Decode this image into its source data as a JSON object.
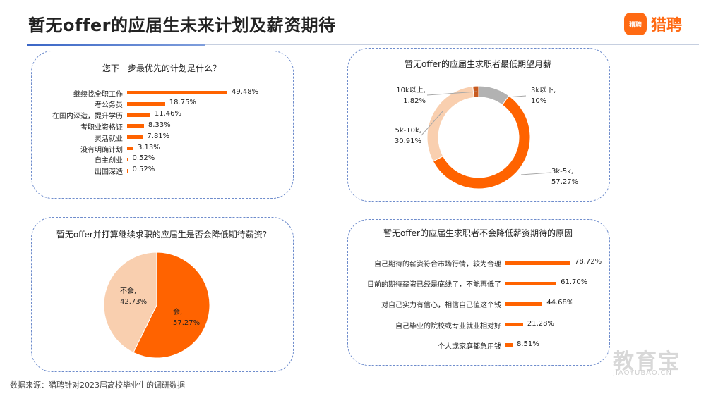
{
  "header": {
    "title": "暂无offer的应届生未来计划及薪资期待"
  },
  "brand": {
    "logo_icon_text": "猎聘",
    "name": "猎聘",
    "color": "#ff6a13"
  },
  "footer": {
    "source": "数据来源：猎聘针对2023届高校毕业生的调研数据"
  },
  "watermark": {
    "text": "教育宝",
    "url": "JIAOYUBAO.CN"
  },
  "chart_data": [
    {
      "type": "bar",
      "orientation": "horizontal",
      "title": "您下一步最优先的计划是什么？",
      "categories": [
        "继续找全职工作",
        "考公务员",
        "在国内深造，提升学历",
        "考职业资格证",
        "灵活就业",
        "没有明确计划",
        "自主创业",
        "出国深造"
      ],
      "values": [
        49.48,
        18.75,
        11.46,
        8.33,
        7.81,
        3.13,
        0.52,
        0.52
      ],
      "value_labels": [
        "49.48%",
        "18.75%",
        "11.46%",
        "8.33%",
        "7.81%",
        "3.13%",
        "0.52%",
        "0.52%"
      ],
      "unit": "%",
      "color": "#ff6300"
    },
    {
      "type": "pie",
      "donut": true,
      "title": "暂无offer的应届生求职者最低期望月薪",
      "slices": [
        {
          "name": "3k以下,",
          "value": 10,
          "label": "10%",
          "color": "#b2b2b2"
        },
        {
          "name": "3k-5k,",
          "value": 57.27,
          "label": "57.27%",
          "color": "#ff6300"
        },
        {
          "name": "5k-10k,",
          "value": 30.91,
          "label": "30.91%",
          "color": "#f9cfaf"
        },
        {
          "name": "10k以上,",
          "value": 1.82,
          "label": "1.82%",
          "color": "#c85a1e"
        }
      ]
    },
    {
      "type": "pie",
      "title": "暂无offer并打算继续求职的应届生是否会降低期待薪资?",
      "slices": [
        {
          "name": "会,",
          "value": 57.27,
          "label": "57.27%",
          "color": "#ff6300"
        },
        {
          "name": "不会,",
          "value": 42.73,
          "label": "42.73%",
          "color": "#f9cfaf"
        }
      ]
    },
    {
      "type": "bar",
      "orientation": "horizontal",
      "title": "暂无offer的应届生求职者不会降低薪资期待的原因",
      "categories": [
        "自己期待的薪资符合市场行情，较为合理",
        "目前的期待薪资已经是底线了，不能再低了",
        "对自己实力有信心，相信自己值这个钱",
        "自己毕业的院校或专业就业相对好",
        "个人或家庭都急用钱"
      ],
      "values": [
        78.72,
        61.7,
        44.68,
        21.28,
        8.51
      ],
      "value_labels": [
        "78.72%",
        "61.70%",
        "44.68%",
        "21.28%",
        "8.51%"
      ],
      "unit": "%",
      "color": "#ff6300"
    }
  ]
}
